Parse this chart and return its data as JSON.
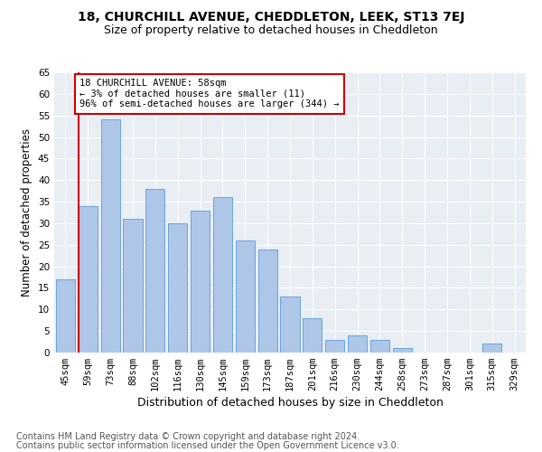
{
  "title": "18, CHURCHILL AVENUE, CHEDDLETON, LEEK, ST13 7EJ",
  "subtitle": "Size of property relative to detached houses in Cheddleton",
  "xlabel": "Distribution of detached houses by size in Cheddleton",
  "ylabel": "Number of detached properties",
  "categories": [
    "45sqm",
    "59sqm",
    "73sqm",
    "88sqm",
    "102sqm",
    "116sqm",
    "130sqm",
    "145sqm",
    "159sqm",
    "173sqm",
    "187sqm",
    "201sqm",
    "216sqm",
    "230sqm",
    "244sqm",
    "258sqm",
    "273sqm",
    "287sqm",
    "301sqm",
    "315sqm",
    "329sqm"
  ],
  "values": [
    17,
    34,
    54,
    31,
    38,
    30,
    33,
    36,
    26,
    24,
    13,
    8,
    3,
    4,
    3,
    1,
    0,
    0,
    0,
    2,
    0
  ],
  "bar_color": "#aec6e8",
  "bar_edge_color": "#5b9bd5",
  "highlight_color": "#cc0000",
  "annotation_text": "18 CHURCHILL AVENUE: 58sqm\n← 3% of detached houses are smaller (11)\n96% of semi-detached houses are larger (344) →",
  "annotation_box_color": "white",
  "annotation_box_edge_color": "#cc0000",
  "ylim": [
    0,
    65
  ],
  "yticks": [
    0,
    5,
    10,
    15,
    20,
    25,
    30,
    35,
    40,
    45,
    50,
    55,
    60,
    65
  ],
  "background_color": "#e8eef4",
  "grid_color": "white",
  "footer_line1": "Contains HM Land Registry data © Crown copyright and database right 2024.",
  "footer_line2": "Contains public sector information licensed under the Open Government Licence v3.0.",
  "title_fontsize": 10,
  "subtitle_fontsize": 9,
  "xlabel_fontsize": 9,
  "ylabel_fontsize": 8.5,
  "tick_fontsize": 7.5,
  "footer_fontsize": 7
}
